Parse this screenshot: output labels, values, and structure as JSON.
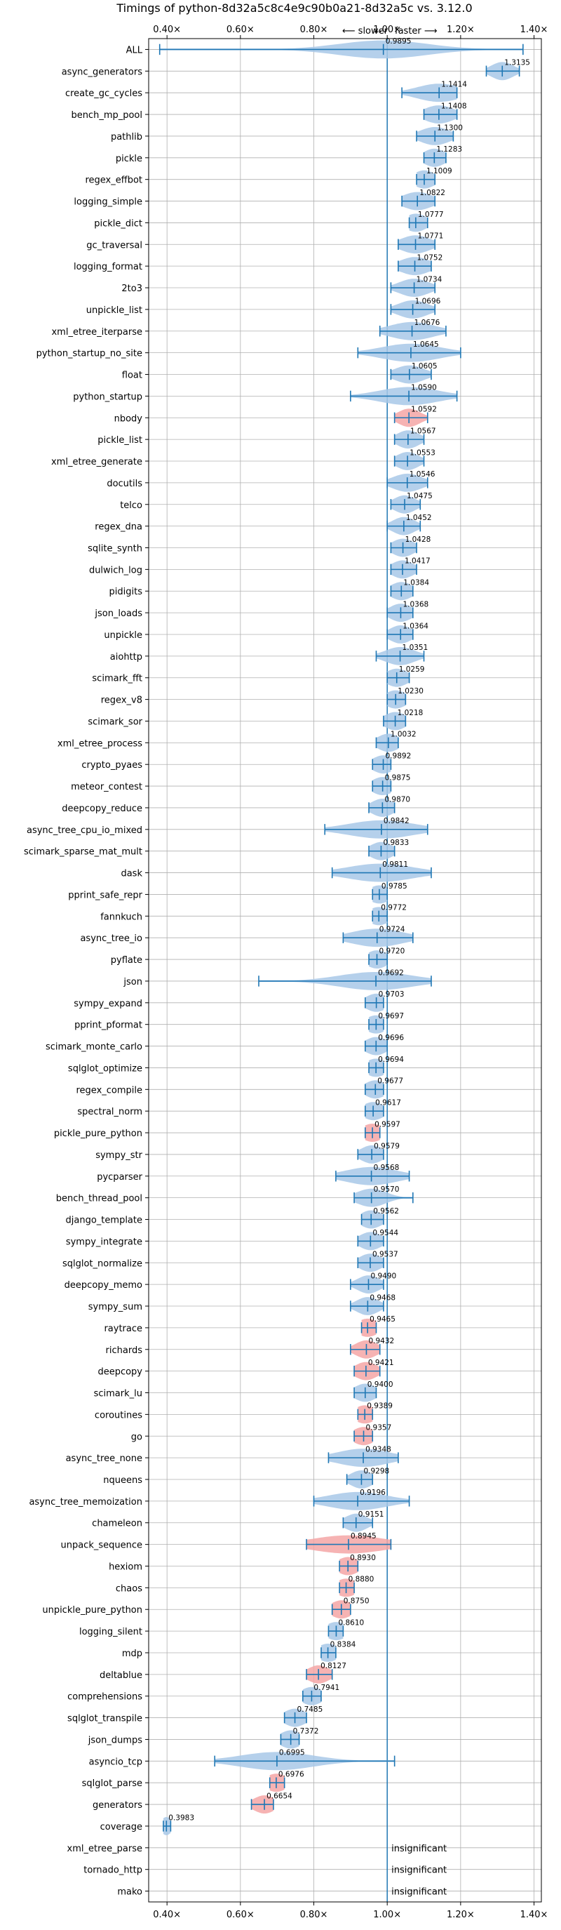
{
  "chart_data": {
    "type": "violin",
    "title": "Timings of python-8d32a5c8c4e9c90b0a21-8d32a5c vs. 3.12.0",
    "direction_slower": "⟵ slower",
    "direction_faster": "faster ⟶",
    "xlim": [
      0.35,
      1.42
    ],
    "xticks": [
      0.4,
      0.6,
      0.8,
      1.0,
      1.2,
      1.4
    ],
    "xtick_labels": [
      "0.40×",
      "0.60×",
      "0.80×",
      "1.00×",
      "1.20×",
      "1.40×"
    ],
    "grid": true,
    "colors": {
      "faster": "#a8c8e8",
      "slower": "#f4a6a6",
      "line": "#1f77b4"
    },
    "insignificant_label": "insignificant",
    "benchmarks": [
      {
        "name": "ALL",
        "value": 0.9895,
        "label": "0.9895",
        "low": 0.38,
        "high": 1.37,
        "spread": 0.12,
        "slower": false
      },
      {
        "name": "async_generators",
        "value": 1.3135,
        "label": "1.3135",
        "low": 1.27,
        "high": 1.36,
        "spread": 0.03,
        "slower": false
      },
      {
        "name": "create_gc_cycles",
        "value": 1.1414,
        "label": "1.1414",
        "low": 1.04,
        "high": 1.19,
        "spread": 0.06,
        "slower": false
      },
      {
        "name": "bench_mp_pool",
        "value": 1.1408,
        "label": "1.1408",
        "low": 1.1,
        "high": 1.19,
        "spread": 0.04,
        "slower": false
      },
      {
        "name": "pathlib",
        "value": 1.13,
        "label": "1.1300",
        "low": 1.08,
        "high": 1.18,
        "spread": 0.04,
        "slower": false
      },
      {
        "name": "pickle",
        "value": 1.1283,
        "label": "1.1283",
        "low": 1.1,
        "high": 1.16,
        "spread": 0.03,
        "slower": false
      },
      {
        "name": "regex_effbot",
        "value": 1.1009,
        "label": "1.1009",
        "low": 1.08,
        "high": 1.13,
        "spread": 0.03,
        "slower": false
      },
      {
        "name": "logging_simple",
        "value": 1.0822,
        "label": "1.0822",
        "low": 1.04,
        "high": 1.13,
        "spread": 0.04,
        "slower": false
      },
      {
        "name": "pickle_dict",
        "value": 1.0777,
        "label": "1.0777",
        "low": 1.06,
        "high": 1.11,
        "spread": 0.03,
        "slower": false
      },
      {
        "name": "gc_traversal",
        "value": 1.0771,
        "label": "1.0771",
        "low": 1.03,
        "high": 1.13,
        "spread": 0.04,
        "slower": false
      },
      {
        "name": "logging_format",
        "value": 1.0752,
        "label": "1.0752",
        "low": 1.03,
        "high": 1.12,
        "spread": 0.04,
        "slower": false
      },
      {
        "name": "2to3",
        "value": 1.0734,
        "label": "1.0734",
        "low": 1.01,
        "high": 1.13,
        "spread": 0.04,
        "slower": false
      },
      {
        "name": "unpickle_list",
        "value": 1.0696,
        "label": "1.0696",
        "low": 1.01,
        "high": 1.13,
        "spread": 0.04,
        "slower": false
      },
      {
        "name": "xml_etree_iterparse",
        "value": 1.0676,
        "label": "1.0676",
        "low": 0.98,
        "high": 1.16,
        "spread": 0.06,
        "slower": false
      },
      {
        "name": "python_startup_no_site",
        "value": 1.0645,
        "label": "1.0645",
        "low": 0.92,
        "high": 1.2,
        "spread": 0.08,
        "slower": false
      },
      {
        "name": "float",
        "value": 1.0605,
        "label": "1.0605",
        "low": 1.01,
        "high": 1.12,
        "spread": 0.04,
        "slower": false
      },
      {
        "name": "python_startup",
        "value": 1.059,
        "label": "1.0590",
        "low": 0.9,
        "high": 1.19,
        "spread": 0.08,
        "slower": false
      },
      {
        "name": "nbody",
        "value": 1.0592,
        "label": "1.0592",
        "low": 1.02,
        "high": 1.11,
        "spread": 0.03,
        "slower": true
      },
      {
        "name": "pickle_list",
        "value": 1.0567,
        "label": "1.0567",
        "low": 1.02,
        "high": 1.1,
        "spread": 0.03,
        "slower": false
      },
      {
        "name": "xml_etree_generate",
        "value": 1.0553,
        "label": "1.0553",
        "low": 1.02,
        "high": 1.1,
        "spread": 0.03,
        "slower": false
      },
      {
        "name": "docutils",
        "value": 1.0546,
        "label": "1.0546",
        "low": 1.0,
        "high": 1.11,
        "spread": 0.04,
        "slower": false
      },
      {
        "name": "telco",
        "value": 1.0475,
        "label": "1.0475",
        "low": 1.01,
        "high": 1.09,
        "spread": 0.03,
        "slower": false
      },
      {
        "name": "regex_dna",
        "value": 1.0452,
        "label": "1.0452",
        "low": 1.0,
        "high": 1.09,
        "spread": 0.03,
        "slower": false
      },
      {
        "name": "sqlite_synth",
        "value": 1.0428,
        "label": "1.0428",
        "low": 1.01,
        "high": 1.08,
        "spread": 0.03,
        "slower": false
      },
      {
        "name": "dulwich_log",
        "value": 1.0417,
        "label": "1.0417",
        "low": 1.01,
        "high": 1.08,
        "spread": 0.03,
        "slower": false
      },
      {
        "name": "pidigits",
        "value": 1.0384,
        "label": "1.0384",
        "low": 1.01,
        "high": 1.07,
        "spread": 0.03,
        "slower": false
      },
      {
        "name": "json_loads",
        "value": 1.0368,
        "label": "1.0368",
        "low": 1.0,
        "high": 1.07,
        "spread": 0.03,
        "slower": false
      },
      {
        "name": "unpickle",
        "value": 1.0364,
        "label": "1.0364",
        "low": 1.0,
        "high": 1.07,
        "spread": 0.03,
        "slower": false
      },
      {
        "name": "aiohttp",
        "value": 1.0351,
        "label": "1.0351",
        "low": 0.97,
        "high": 1.1,
        "spread": 0.04,
        "slower": false
      },
      {
        "name": "scimark_fft",
        "value": 1.0259,
        "label": "1.0259",
        "low": 1.0,
        "high": 1.06,
        "spread": 0.03,
        "slower": false
      },
      {
        "name": "regex_v8",
        "value": 1.023,
        "label": "1.0230",
        "low": 1.0,
        "high": 1.05,
        "spread": 0.03,
        "slower": false
      },
      {
        "name": "scimark_sor",
        "value": 1.0218,
        "label": "1.0218",
        "low": 0.99,
        "high": 1.05,
        "spread": 0.03,
        "slower": false
      },
      {
        "name": "xml_etree_process",
        "value": 1.0032,
        "label": "1.0032",
        "low": 0.97,
        "high": 1.03,
        "spread": 0.03,
        "slower": false
      },
      {
        "name": "crypto_pyaes",
        "value": 0.9892,
        "label": "0.9892",
        "low": 0.96,
        "high": 1.01,
        "spread": 0.03,
        "slower": false
      },
      {
        "name": "meteor_contest",
        "value": 0.9875,
        "label": "0.9875",
        "low": 0.96,
        "high": 1.01,
        "spread": 0.03,
        "slower": false
      },
      {
        "name": "deepcopy_reduce",
        "value": 0.987,
        "label": "0.9870",
        "low": 0.95,
        "high": 1.02,
        "spread": 0.03,
        "slower": false
      },
      {
        "name": "async_tree_cpu_io_mixed",
        "value": 0.9842,
        "label": "0.9842",
        "low": 0.83,
        "high": 1.11,
        "spread": 0.09,
        "slower": false
      },
      {
        "name": "scimark_sparse_mat_mult",
        "value": 0.9833,
        "label": "0.9833",
        "low": 0.95,
        "high": 1.02,
        "spread": 0.03,
        "slower": false
      },
      {
        "name": "dask",
        "value": 0.9811,
        "label": "0.9811",
        "low": 0.85,
        "high": 1.12,
        "spread": 0.09,
        "slower": false
      },
      {
        "name": "pprint_safe_repr",
        "value": 0.9785,
        "label": "0.9785",
        "low": 0.96,
        "high": 1.0,
        "spread": 0.03,
        "slower": false
      },
      {
        "name": "fannkuch",
        "value": 0.9772,
        "label": "0.9772",
        "low": 0.96,
        "high": 1.0,
        "spread": 0.03,
        "slower": false
      },
      {
        "name": "async_tree_io",
        "value": 0.9724,
        "label": "0.9724",
        "low": 0.88,
        "high": 1.07,
        "spread": 0.07,
        "slower": false
      },
      {
        "name": "pyflate",
        "value": 0.972,
        "label": "0.9720",
        "low": 0.95,
        "high": 1.0,
        "spread": 0.03,
        "slower": false
      },
      {
        "name": "json",
        "value": 0.9692,
        "label": "0.9692",
        "low": 0.65,
        "high": 1.12,
        "spread": 0.1,
        "slower": false
      },
      {
        "name": "sympy_expand",
        "value": 0.9703,
        "label": "0.9703",
        "low": 0.94,
        "high": 0.99,
        "spread": 0.03,
        "slower": false
      },
      {
        "name": "pprint_pformat",
        "value": 0.9697,
        "label": "0.9697",
        "low": 0.95,
        "high": 0.99,
        "spread": 0.03,
        "slower": false
      },
      {
        "name": "scimark_monte_carlo",
        "value": 0.9696,
        "label": "0.9696",
        "low": 0.94,
        "high": 1.0,
        "spread": 0.03,
        "slower": false
      },
      {
        "name": "sqlglot_optimize",
        "value": 0.9694,
        "label": "0.9694",
        "low": 0.95,
        "high": 0.99,
        "spread": 0.03,
        "slower": false
      },
      {
        "name": "regex_compile",
        "value": 0.9677,
        "label": "0.9677",
        "low": 0.94,
        "high": 0.99,
        "spread": 0.03,
        "slower": false
      },
      {
        "name": "spectral_norm",
        "value": 0.9617,
        "label": "0.9617",
        "low": 0.94,
        "high": 0.99,
        "spread": 0.03,
        "slower": false
      },
      {
        "name": "pickle_pure_python",
        "value": 0.9597,
        "label": "0.9597",
        "low": 0.94,
        "high": 0.98,
        "spread": 0.03,
        "slower": true
      },
      {
        "name": "sympy_str",
        "value": 0.9579,
        "label": "0.9579",
        "low": 0.92,
        "high": 0.99,
        "spread": 0.03,
        "slower": false
      },
      {
        "name": "pycparser",
        "value": 0.9568,
        "label": "0.9568",
        "low": 0.86,
        "high": 1.06,
        "spread": 0.07,
        "slower": false
      },
      {
        "name": "bench_thread_pool",
        "value": 0.957,
        "label": "0.9570",
        "low": 0.91,
        "high": 1.07,
        "spread": 0.04,
        "slower": false
      },
      {
        "name": "django_template",
        "value": 0.9562,
        "label": "0.9562",
        "low": 0.93,
        "high": 0.99,
        "spread": 0.03,
        "slower": false
      },
      {
        "name": "sympy_integrate",
        "value": 0.9544,
        "label": "0.9544",
        "low": 0.92,
        "high": 0.99,
        "spread": 0.03,
        "slower": false
      },
      {
        "name": "sqlglot_normalize",
        "value": 0.9537,
        "label": "0.9537",
        "low": 0.92,
        "high": 0.99,
        "spread": 0.03,
        "slower": false
      },
      {
        "name": "deepcopy_memo",
        "value": 0.949,
        "label": "0.9490",
        "low": 0.9,
        "high": 0.99,
        "spread": 0.03,
        "slower": false
      },
      {
        "name": "sympy_sum",
        "value": 0.9468,
        "label": "0.9468",
        "low": 0.9,
        "high": 0.99,
        "spread": 0.03,
        "slower": false
      },
      {
        "name": "raytrace",
        "value": 0.9465,
        "label": "0.9465",
        "low": 0.93,
        "high": 0.97,
        "spread": 0.03,
        "slower": true
      },
      {
        "name": "richards",
        "value": 0.9432,
        "label": "0.9432",
        "low": 0.9,
        "high": 0.98,
        "spread": 0.03,
        "slower": true
      },
      {
        "name": "deepcopy",
        "value": 0.9421,
        "label": "0.9421",
        "low": 0.91,
        "high": 0.98,
        "spread": 0.03,
        "slower": true
      },
      {
        "name": "scimark_lu",
        "value": 0.94,
        "label": "0.9400",
        "low": 0.91,
        "high": 0.97,
        "spread": 0.03,
        "slower": false
      },
      {
        "name": "coroutines",
        "value": 0.9389,
        "label": "0.9389",
        "low": 0.92,
        "high": 0.96,
        "spread": 0.03,
        "slower": true
      },
      {
        "name": "go",
        "value": 0.9357,
        "label": "0.9357",
        "low": 0.91,
        "high": 0.96,
        "spread": 0.03,
        "slower": true
      },
      {
        "name": "async_tree_none",
        "value": 0.9348,
        "label": "0.9348",
        "low": 0.84,
        "high": 1.03,
        "spread": 0.07,
        "slower": false
      },
      {
        "name": "nqueens",
        "value": 0.9298,
        "label": "0.9298",
        "low": 0.89,
        "high": 0.96,
        "spread": 0.03,
        "slower": false
      },
      {
        "name": "async_tree_memoization",
        "value": 0.9196,
        "label": "0.9196",
        "low": 0.8,
        "high": 1.06,
        "spread": 0.08,
        "slower": false
      },
      {
        "name": "chameleon",
        "value": 0.9151,
        "label": "0.9151",
        "low": 0.88,
        "high": 0.96,
        "spread": 0.03,
        "slower": false
      },
      {
        "name": "unpack_sequence",
        "value": 0.8945,
        "label": "0.8945",
        "low": 0.78,
        "high": 1.01,
        "spread": 0.1,
        "slower": true
      },
      {
        "name": "hexiom",
        "value": 0.893,
        "label": "0.8930",
        "low": 0.87,
        "high": 0.92,
        "spread": 0.03,
        "slower": true
      },
      {
        "name": "chaos",
        "value": 0.888,
        "label": "0.8880",
        "low": 0.87,
        "high": 0.91,
        "spread": 0.03,
        "slower": true
      },
      {
        "name": "unpickle_pure_python",
        "value": 0.875,
        "label": "0.8750",
        "low": 0.85,
        "high": 0.9,
        "spread": 0.03,
        "slower": true
      },
      {
        "name": "logging_silent",
        "value": 0.861,
        "label": "0.8610",
        "low": 0.84,
        "high": 0.88,
        "spread": 0.03,
        "slower": false
      },
      {
        "name": "mdp",
        "value": 0.8384,
        "label": "0.8384",
        "low": 0.82,
        "high": 0.86,
        "spread": 0.03,
        "slower": false
      },
      {
        "name": "deltablue",
        "value": 0.8127,
        "label": "0.8127",
        "low": 0.78,
        "high": 0.85,
        "spread": 0.03,
        "slower": true
      },
      {
        "name": "comprehensions",
        "value": 0.7941,
        "label": "0.7941",
        "low": 0.77,
        "high": 0.82,
        "spread": 0.03,
        "slower": false
      },
      {
        "name": "sqlglot_transpile",
        "value": 0.7485,
        "label": "0.7485",
        "low": 0.72,
        "high": 0.78,
        "spread": 0.03,
        "slower": false
      },
      {
        "name": "json_dumps",
        "value": 0.7372,
        "label": "0.7372",
        "low": 0.71,
        "high": 0.76,
        "spread": 0.03,
        "slower": false
      },
      {
        "name": "asyncio_tcp",
        "value": 0.6995,
        "label": "0.6995",
        "low": 0.53,
        "high": 1.02,
        "spread": 0.1,
        "slower": false
      },
      {
        "name": "sqlglot_parse",
        "value": 0.6976,
        "label": "0.6976",
        "low": 0.68,
        "high": 0.72,
        "spread": 0.03,
        "slower": true
      },
      {
        "name": "generators",
        "value": 0.6654,
        "label": "0.6654",
        "low": 0.63,
        "high": 0.69,
        "spread": 0.03,
        "slower": true
      },
      {
        "name": "coverage",
        "value": 0.3983,
        "label": "0.3983",
        "low": 0.39,
        "high": 0.41,
        "spread": 0.015,
        "slower": false
      },
      {
        "name": "xml_etree_parse",
        "insignificant": true
      },
      {
        "name": "tornado_http",
        "insignificant": true
      },
      {
        "name": "mako",
        "insignificant": true
      }
    ]
  }
}
